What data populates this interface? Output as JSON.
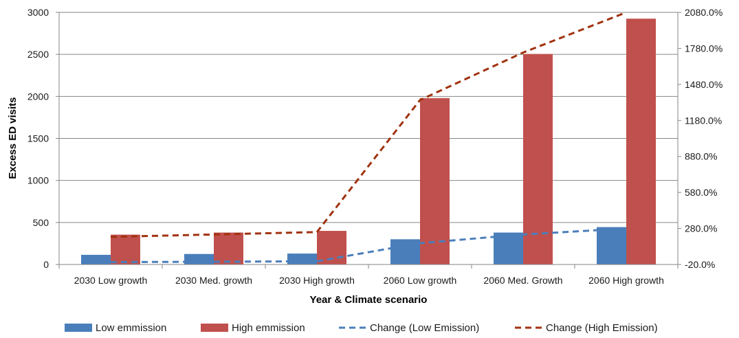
{
  "chart_data": {
    "type": "bar",
    "title": "",
    "xlabel": "Year & Climate scenario",
    "ylabel": "Excess ED visits",
    "categories": [
      "2030 Low growth",
      "2030 Med. growth",
      "2030 High growth",
      "2060 Low growth",
      "2060 Med. Growth",
      "2060 High growth"
    ],
    "ylim": [
      0,
      3000
    ],
    "yticks": [
      0,
      500,
      1000,
      1500,
      2000,
      2500,
      3000
    ],
    "y2lim": [
      -20,
      2080
    ],
    "y2ticks": [
      -20,
      280,
      580,
      880,
      1180,
      1480,
      1780,
      2080
    ],
    "y2tick_labels": [
      "-20.0%",
      "280.0%",
      "580.0%",
      "880.0%",
      "1180.0%",
      "1480.0%",
      "1780.0%",
      "2080.0%"
    ],
    "grid": "horizontal",
    "legend_position": "bottom",
    "series": [
      {
        "name": "Low emmission",
        "kind": "bar",
        "axis": "left",
        "color": "#4a7ebb",
        "values": [
          115,
          125,
          130,
          300,
          380,
          445
        ]
      },
      {
        "name": "High emmission",
        "kind": "bar",
        "axis": "left",
        "color": "#c0504d",
        "values": [
          355,
          380,
          400,
          1980,
          2505,
          2925
        ]
      },
      {
        "name": "Change (Low Emission)",
        "kind": "line",
        "axis": "right",
        "style": "dashed",
        "color": "#4a7ebb",
        "values": [
          0,
          3,
          7,
          158,
          230,
          280
        ]
      },
      {
        "name": "Change (High Emission)",
        "kind": "line",
        "axis": "right",
        "style": "dashed",
        "color": "#a0320f",
        "values": [
          210,
          230,
          250,
          1350,
          1745,
          2080
        ]
      }
    ]
  }
}
